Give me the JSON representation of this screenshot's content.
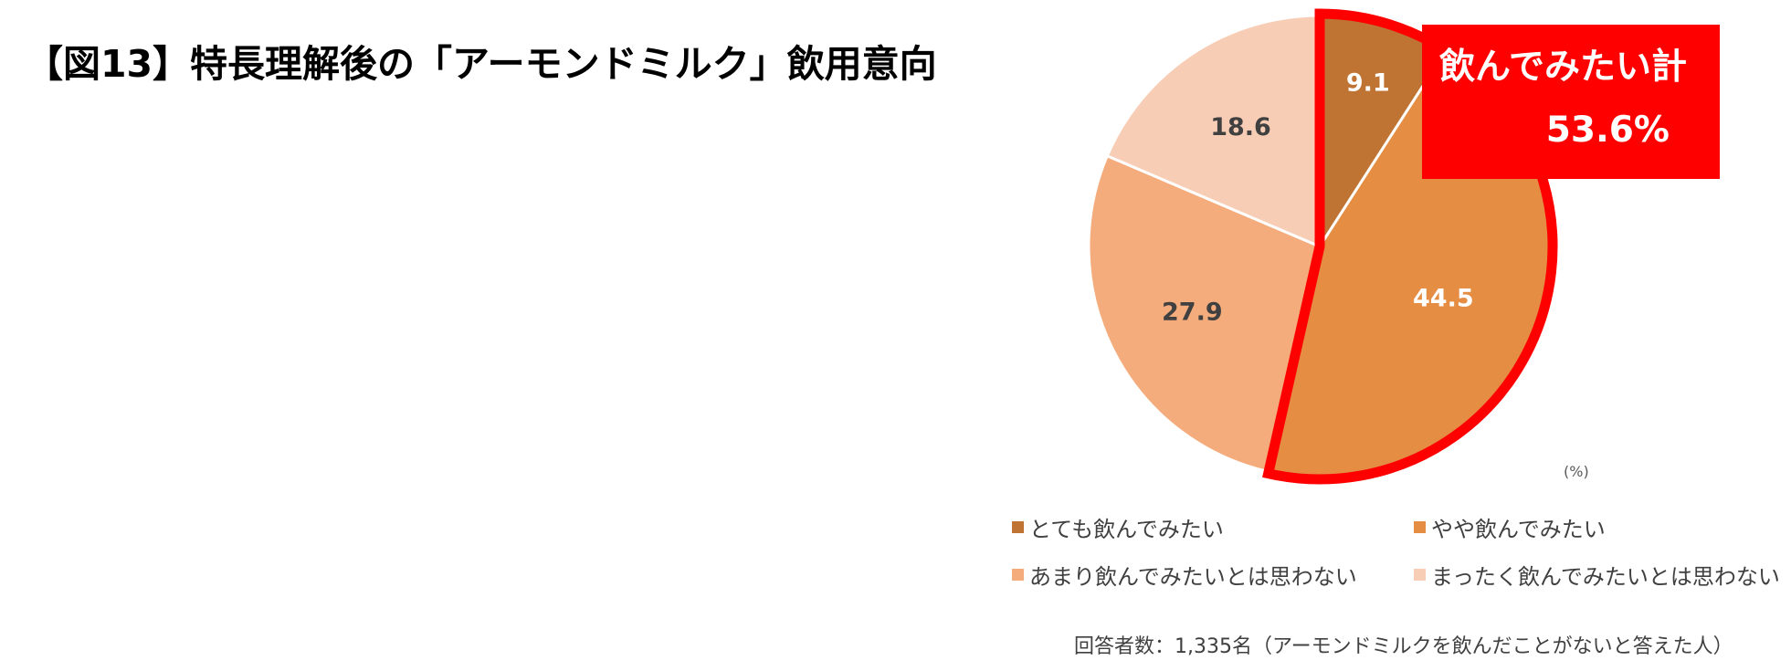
{
  "page": {
    "title": "【図13】特長理解後の「アーモンドミルク」飲用意向"
  },
  "chart_data": {
    "type": "pie",
    "unit": "(%)",
    "slices": [
      {
        "label": "とても飲んでみたい",
        "value": 9.1,
        "color": "#C07434"
      },
      {
        "label": "やや飲んでみたい",
        "value": 44.5,
        "color": "#E58D43"
      },
      {
        "label": "あまり飲んでみたいとは思わない",
        "value": 27.9,
        "color": "#F5AC7C"
      },
      {
        "label": "まったく飲んでみたいとは思わない",
        "value": 18.6,
        "color": "#F8CDB5"
      }
    ],
    "slice_label_color": "#ffffff",
    "slice_label_dark_color": "#404040",
    "highlight": {
      "title": "飲んでみたい計",
      "value": "53.6%",
      "color": "#FF0000"
    },
    "legend_placement": "bottom"
  },
  "footnote": "回答者数：1,335名（アーモンドミルクを飲んだことがないと答えた人）"
}
